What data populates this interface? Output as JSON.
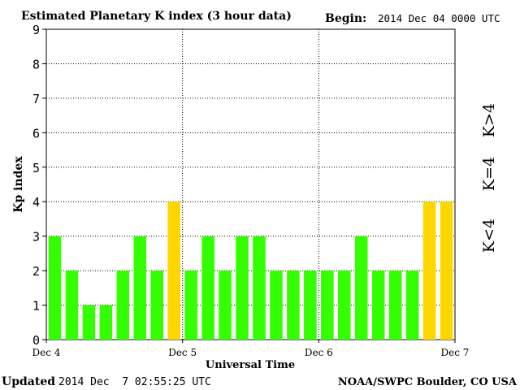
{
  "header": {
    "title": "Estimated Planetary K index (3 hour data)",
    "begin_label": "Begin:",
    "begin_value": "2014 Dec 04 0000 UTC"
  },
  "footer": {
    "updated_label": "Updated",
    "updated_value": "2014 Dec  7 02:55:25 UTC",
    "credit": "NOAA/SWPC Boulder, CO USA"
  },
  "legend": {
    "above": "K>4",
    "equal": "K=4",
    "below": "K<4"
  },
  "colors": {
    "below": "#33ff00",
    "equal": "#ffd700",
    "above": "#ff3300",
    "grid": "#000000",
    "background": "#ffffff"
  },
  "chart_data": {
    "type": "bar",
    "title": "Estimated Planetary K index (3 hour data)",
    "xlabel": "Universal Time",
    "ylabel": "Kp index",
    "ylim": [
      0,
      9
    ],
    "yticks": [
      "0",
      "1",
      "2",
      "3",
      "4",
      "5",
      "6",
      "7",
      "8",
      "9"
    ],
    "xtick_labels": [
      "Dec 4",
      "Dec 5",
      "Dec 6",
      "Dec 7"
    ],
    "grid": true,
    "values": [
      3,
      2,
      1,
      1,
      2,
      3,
      2,
      4,
      2,
      3,
      2,
      3,
      3,
      2,
      2,
      2,
      2,
      2,
      3,
      2,
      2,
      2,
      4,
      4
    ]
  }
}
